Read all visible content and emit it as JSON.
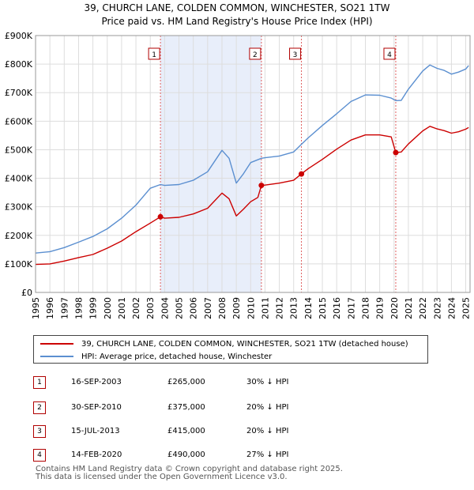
{
  "chart_data": {
    "type": "line",
    "title": "39, CHURCH LANE, COLDEN COMMON, WINCHESTER, SO21 1TW",
    "subtitle": "Price paid vs. HM Land Registry's House Price Index (HPI)",
    "xlabel": "",
    "ylabel": "",
    "xlim": [
      1995,
      2025.3
    ],
    "ylim": [
      0,
      900000
    ],
    "y_ticks": [
      0,
      100000,
      200000,
      300000,
      400000,
      500000,
      600000,
      700000,
      800000,
      900000
    ],
    "y_tick_labels": [
      "£0",
      "£100K",
      "£200K",
      "£300K",
      "£400K",
      "£500K",
      "£600K",
      "£700K",
      "£800K",
      "£900K"
    ],
    "x_ticks": [
      1995,
      1996,
      1997,
      1998,
      1999,
      2000,
      2001,
      2002,
      2003,
      2004,
      2005,
      2006,
      2007,
      2008,
      2009,
      2010,
      2011,
      2012,
      2013,
      2014,
      2015,
      2016,
      2017,
      2018,
      2019,
      2020,
      2021,
      2022,
      2023,
      2024,
      2025
    ],
    "x_tick_labels": [
      "1995",
      "1996",
      "1997",
      "1998",
      "1999",
      "2000",
      "2001",
      "2002",
      "2003",
      "2004",
      "2005",
      "2006",
      "2007",
      "2008",
      "2009",
      "2010",
      "2011",
      "2012",
      "2013",
      "2014",
      "2015",
      "2016",
      "2017",
      "2018",
      "2019",
      "2020",
      "2021",
      "2022",
      "2023",
      "2024",
      "2025"
    ],
    "grid": true,
    "colors": {
      "property": "#cc0000",
      "hpi": "#5b8fd0",
      "shade": "#e8eefa",
      "vline": "#e06060",
      "grid": "#dddddd"
    },
    "series": [
      {
        "name": "39, CHURCH LANE, COLDEN COMMON, WINCHESTER, SO21 1TW (detached house)",
        "x": [
          1995,
          1996,
          1997,
          1998,
          1999,
          2000,
          2001,
          2002,
          2003,
          2003.71,
          2004,
          2005,
          2006,
          2007,
          2008,
          2008.5,
          2009,
          2009.5,
          2010,
          2010.5,
          2010.75,
          2011,
          2012,
          2013,
          2013.54,
          2014,
          2015,
          2016,
          2017,
          2018,
          2019,
          2019.8,
          2020.12,
          2020.5,
          2021,
          2022,
          2022.5,
          2023,
          2023.5,
          2024,
          2024.5,
          2025,
          2025.2
        ],
        "values": [
          98000,
          100000,
          110000,
          122000,
          133000,
          155000,
          180000,
          213000,
          243000,
          265000,
          260000,
          263000,
          275000,
          295000,
          348000,
          328000,
          268000,
          292000,
          318000,
          333000,
          375000,
          376000,
          383000,
          393000,
          415000,
          433000,
          466000,
          502000,
          534000,
          552000,
          552000,
          545000,
          490000,
          492000,
          520000,
          566000,
          582000,
          573000,
          567000,
          558000,
          563000,
          572000,
          578000
        ]
      },
      {
        "name": "HPI: Average price, detached house, Winchester",
        "x": [
          1995,
          1996,
          1997,
          1998,
          1999,
          2000,
          2001,
          2002,
          2003,
          2003.71,
          2004,
          2005,
          2006,
          2007,
          2008,
          2008.5,
          2009,
          2009.5,
          2010,
          2010.75,
          2011,
          2012,
          2013,
          2013.54,
          2014,
          2015,
          2016,
          2017,
          2018,
          2019,
          2019.8,
          2020.12,
          2020.5,
          2021,
          2022,
          2022.5,
          2023,
          2023.5,
          2024,
          2024.5,
          2025,
          2025.2
        ],
        "values": [
          138000,
          143000,
          157000,
          176000,
          196000,
          223000,
          260000,
          306000,
          365000,
          378000,
          375000,
          378000,
          393000,
          423000,
          498000,
          470000,
          383000,
          416000,
          455000,
          470000,
          472000,
          478000,
          492000,
          519000,
          541000,
          585000,
          626000,
          669000,
          692000,
          691000,
          681000,
          672000,
          673000,
          712000,
          776000,
          797000,
          785000,
          778000,
          765000,
          772000,
          783000,
          795000
        ]
      }
    ],
    "sales": [
      {
        "num": "1",
        "year": 2003.71,
        "value": 265000
      },
      {
        "num": "2",
        "year": 2010.75,
        "value": 375000
      },
      {
        "num": "3",
        "year": 2013.54,
        "value": 415000
      },
      {
        "num": "4",
        "year": 2020.12,
        "value": 490000
      }
    ]
  },
  "legend": {
    "property_label": "39, CHURCH LANE, COLDEN COMMON, WINCHESTER, SO21 1TW (detached house)",
    "hpi_label": "HPI: Average price, detached house, Winchester"
  },
  "sales_table": [
    {
      "num": "1",
      "date": "16-SEP-2003",
      "price": "£265,000",
      "hpi": "30% ↓ HPI"
    },
    {
      "num": "2",
      "date": "30-SEP-2010",
      "price": "£375,000",
      "hpi": "20% ↓ HPI"
    },
    {
      "num": "3",
      "date": "15-JUL-2013",
      "price": "£415,000",
      "hpi": "20% ↓ HPI"
    },
    {
      "num": "4",
      "date": "14-FEB-2020",
      "price": "£490,000",
      "hpi": "27% ↓ HPI"
    }
  ],
  "footer": {
    "line1": "Contains HM Land Registry data © Crown copyright and database right 2025.",
    "line2": "This data is licensed under the Open Government Licence v3.0."
  }
}
